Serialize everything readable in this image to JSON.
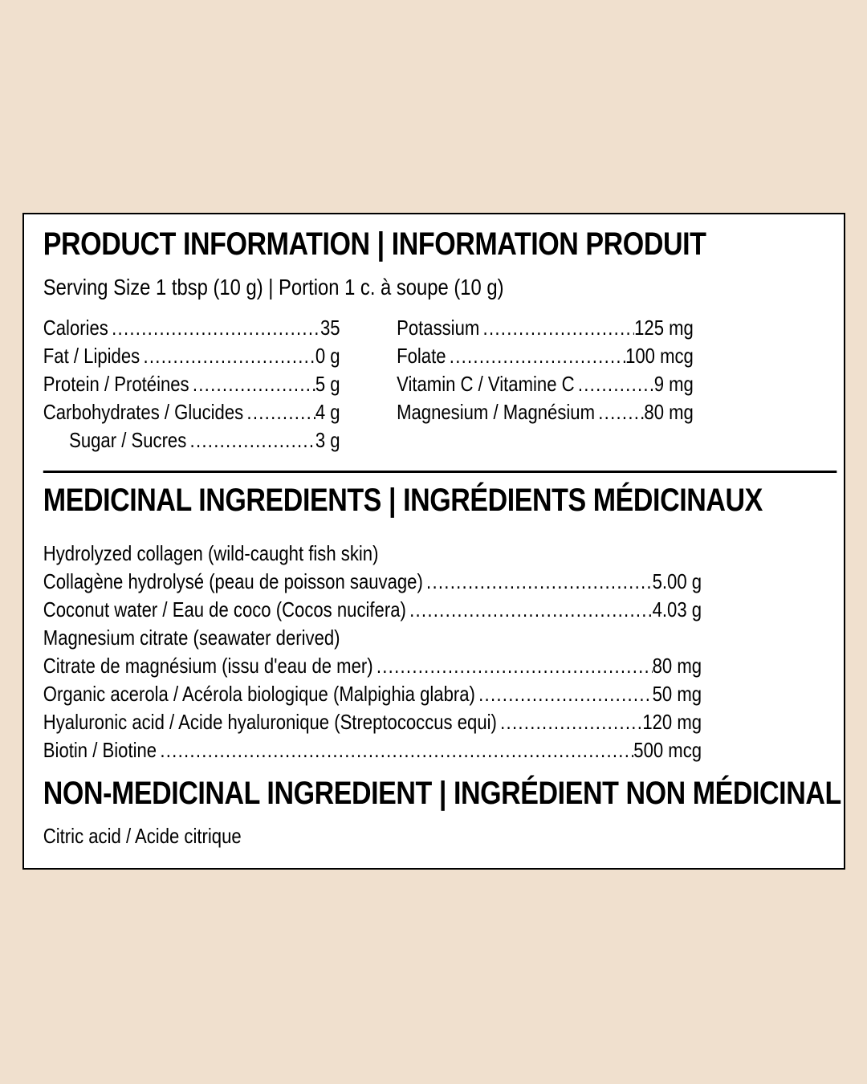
{
  "colors": {
    "page_background": "#f0e0ce",
    "panel_background": "#ffffff",
    "border_and_text": "#000000"
  },
  "product_information": {
    "title": "PRODUCT INFORMATION | INFORMATION PRODUIT",
    "serving_size": "Serving Size 1 tbsp (10 g) | Portion 1 c. à soupe (10 g)",
    "nutrition_left": [
      {
        "label": "Calories",
        "value": "35"
      },
      {
        "label": "Fat / Lipides",
        "value": "0 g"
      },
      {
        "label": "Protein / Protéines",
        "value": "5 g"
      },
      {
        "label": "Carbohydrates / Glucides",
        "value": "4 g"
      },
      {
        "label": "Sugar / Sucres",
        "value": "3 g"
      }
    ],
    "nutrition_right": [
      {
        "label": "Potassium",
        "value": "125 mg"
      },
      {
        "label": "Folate",
        "value": "100 mcg"
      },
      {
        "label": "Vitamin C / Vitamine C",
        "value": "9 mg"
      },
      {
        "label": "Magnesium / Magnésium",
        "value": "80 mg"
      }
    ]
  },
  "medicinal": {
    "title": "MEDICINAL INGREDIENTS | INGRÉDIENTS MÉDICINAUX",
    "rows": [
      {
        "label": "Hydrolyzed collagen (wild-caught fish skin)",
        "value": ""
      },
      {
        "label": "Collagène hydrolysé (peau de poisson sauvage)",
        "value": "5.00 g"
      },
      {
        "label": "Coconut water / Eau de coco (Cocos nucifera)",
        "value": "4.03 g"
      },
      {
        "label": "Magnesium citrate (seawater derived)",
        "value": ""
      },
      {
        "label": "Citrate de magnésium (issu d'eau de mer)",
        "value": "80 mg"
      },
      {
        "label": "Organic acerola / Acérola biologique (Malpighia glabra)",
        "value": "50 mg"
      },
      {
        "label": "Hyaluronic acid / Acide hyaluronique (Streptococcus equi)",
        "value": "120 mg"
      },
      {
        "label": "Biotin / Biotine",
        "value": "500 mcg"
      }
    ]
  },
  "non_medicinal": {
    "title": "NON-MEDICINAL INGREDIENT | INGRÉDIENT NON MÉDICINAL",
    "ingredient": "Citric acid / Acide citrique"
  }
}
